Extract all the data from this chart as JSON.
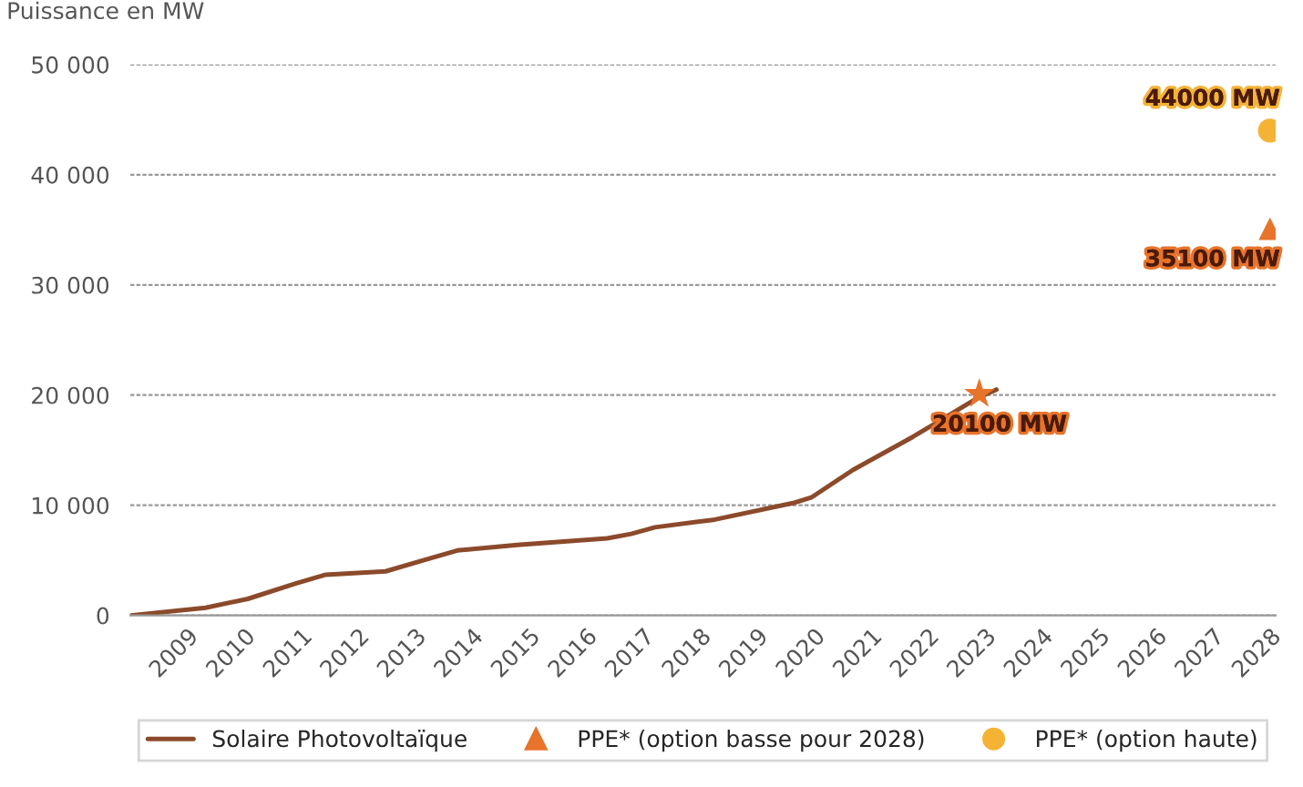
{
  "chart_data": {
    "type": "line",
    "ylabel": "Puissance en MW",
    "xlim": [
      2008,
      2028.1
    ],
    "xticks": [
      2009,
      2010,
      2011,
      2012,
      2013,
      2014,
      2015,
      2016,
      2017,
      2018,
      2019,
      2020,
      2021,
      2022,
      2023,
      2024,
      2025,
      2026,
      2027,
      2028
    ],
    "ylim": [
      0,
      50000
    ],
    "yticks": [
      {
        "value": 0,
        "label": "0"
      },
      {
        "value": 10000,
        "label": "10 000"
      },
      {
        "value": 20000,
        "label": "20 000"
      },
      {
        "value": 30000,
        "label": "30 000"
      },
      {
        "value": 40000,
        "label": "40 000"
      },
      {
        "value": 50000,
        "label": "50 000"
      }
    ],
    "grid": "y",
    "legend": "bottom",
    "series": [
      {
        "name": "Solaire Photovoltaïque",
        "type": "line",
        "color": "#8b4a2b",
        "marker": "none",
        "x": [
          2008.0,
          2009.32,
          2010.06,
          2010.9,
          2011.43,
          2012.48,
          2013.21,
          2013.74,
          2014.79,
          2016.37,
          2016.79,
          2017.21,
          2018.26,
          2019.63,
          2019.95,
          2020.68,
          2021.73,
          2022.89,
          2023.2
        ],
        "values": [
          0,
          700,
          1500,
          2900,
          3700,
          4000,
          5100,
          5900,
          6400,
          7000,
          7400,
          8000,
          8700,
          10200,
          10700,
          13200,
          16200,
          19800,
          20500
        ]
      },
      {
        "type": "scatter",
        "color": "#e8732a",
        "marker": "star",
        "x": [
          2022.9
        ],
        "values": [
          20100
        ],
        "value_labels": [
          "20100 MW"
        ]
      },
      {
        "name": "PPE* (option basse pour 2028)",
        "type": "scatter",
        "color": "#e8732a",
        "marker": "triangle",
        "x": [
          2028
        ],
        "values": [
          35100
        ],
        "value_labels": [
          "35100 MW"
        ]
      },
      {
        "name": "PPE* (option haute)",
        "type": "scatter",
        "color": "#f5b335",
        "marker": "circle",
        "x": [
          2028
        ],
        "values": [
          44000
        ],
        "value_labels": [
          "44000 MW"
        ]
      }
    ]
  }
}
